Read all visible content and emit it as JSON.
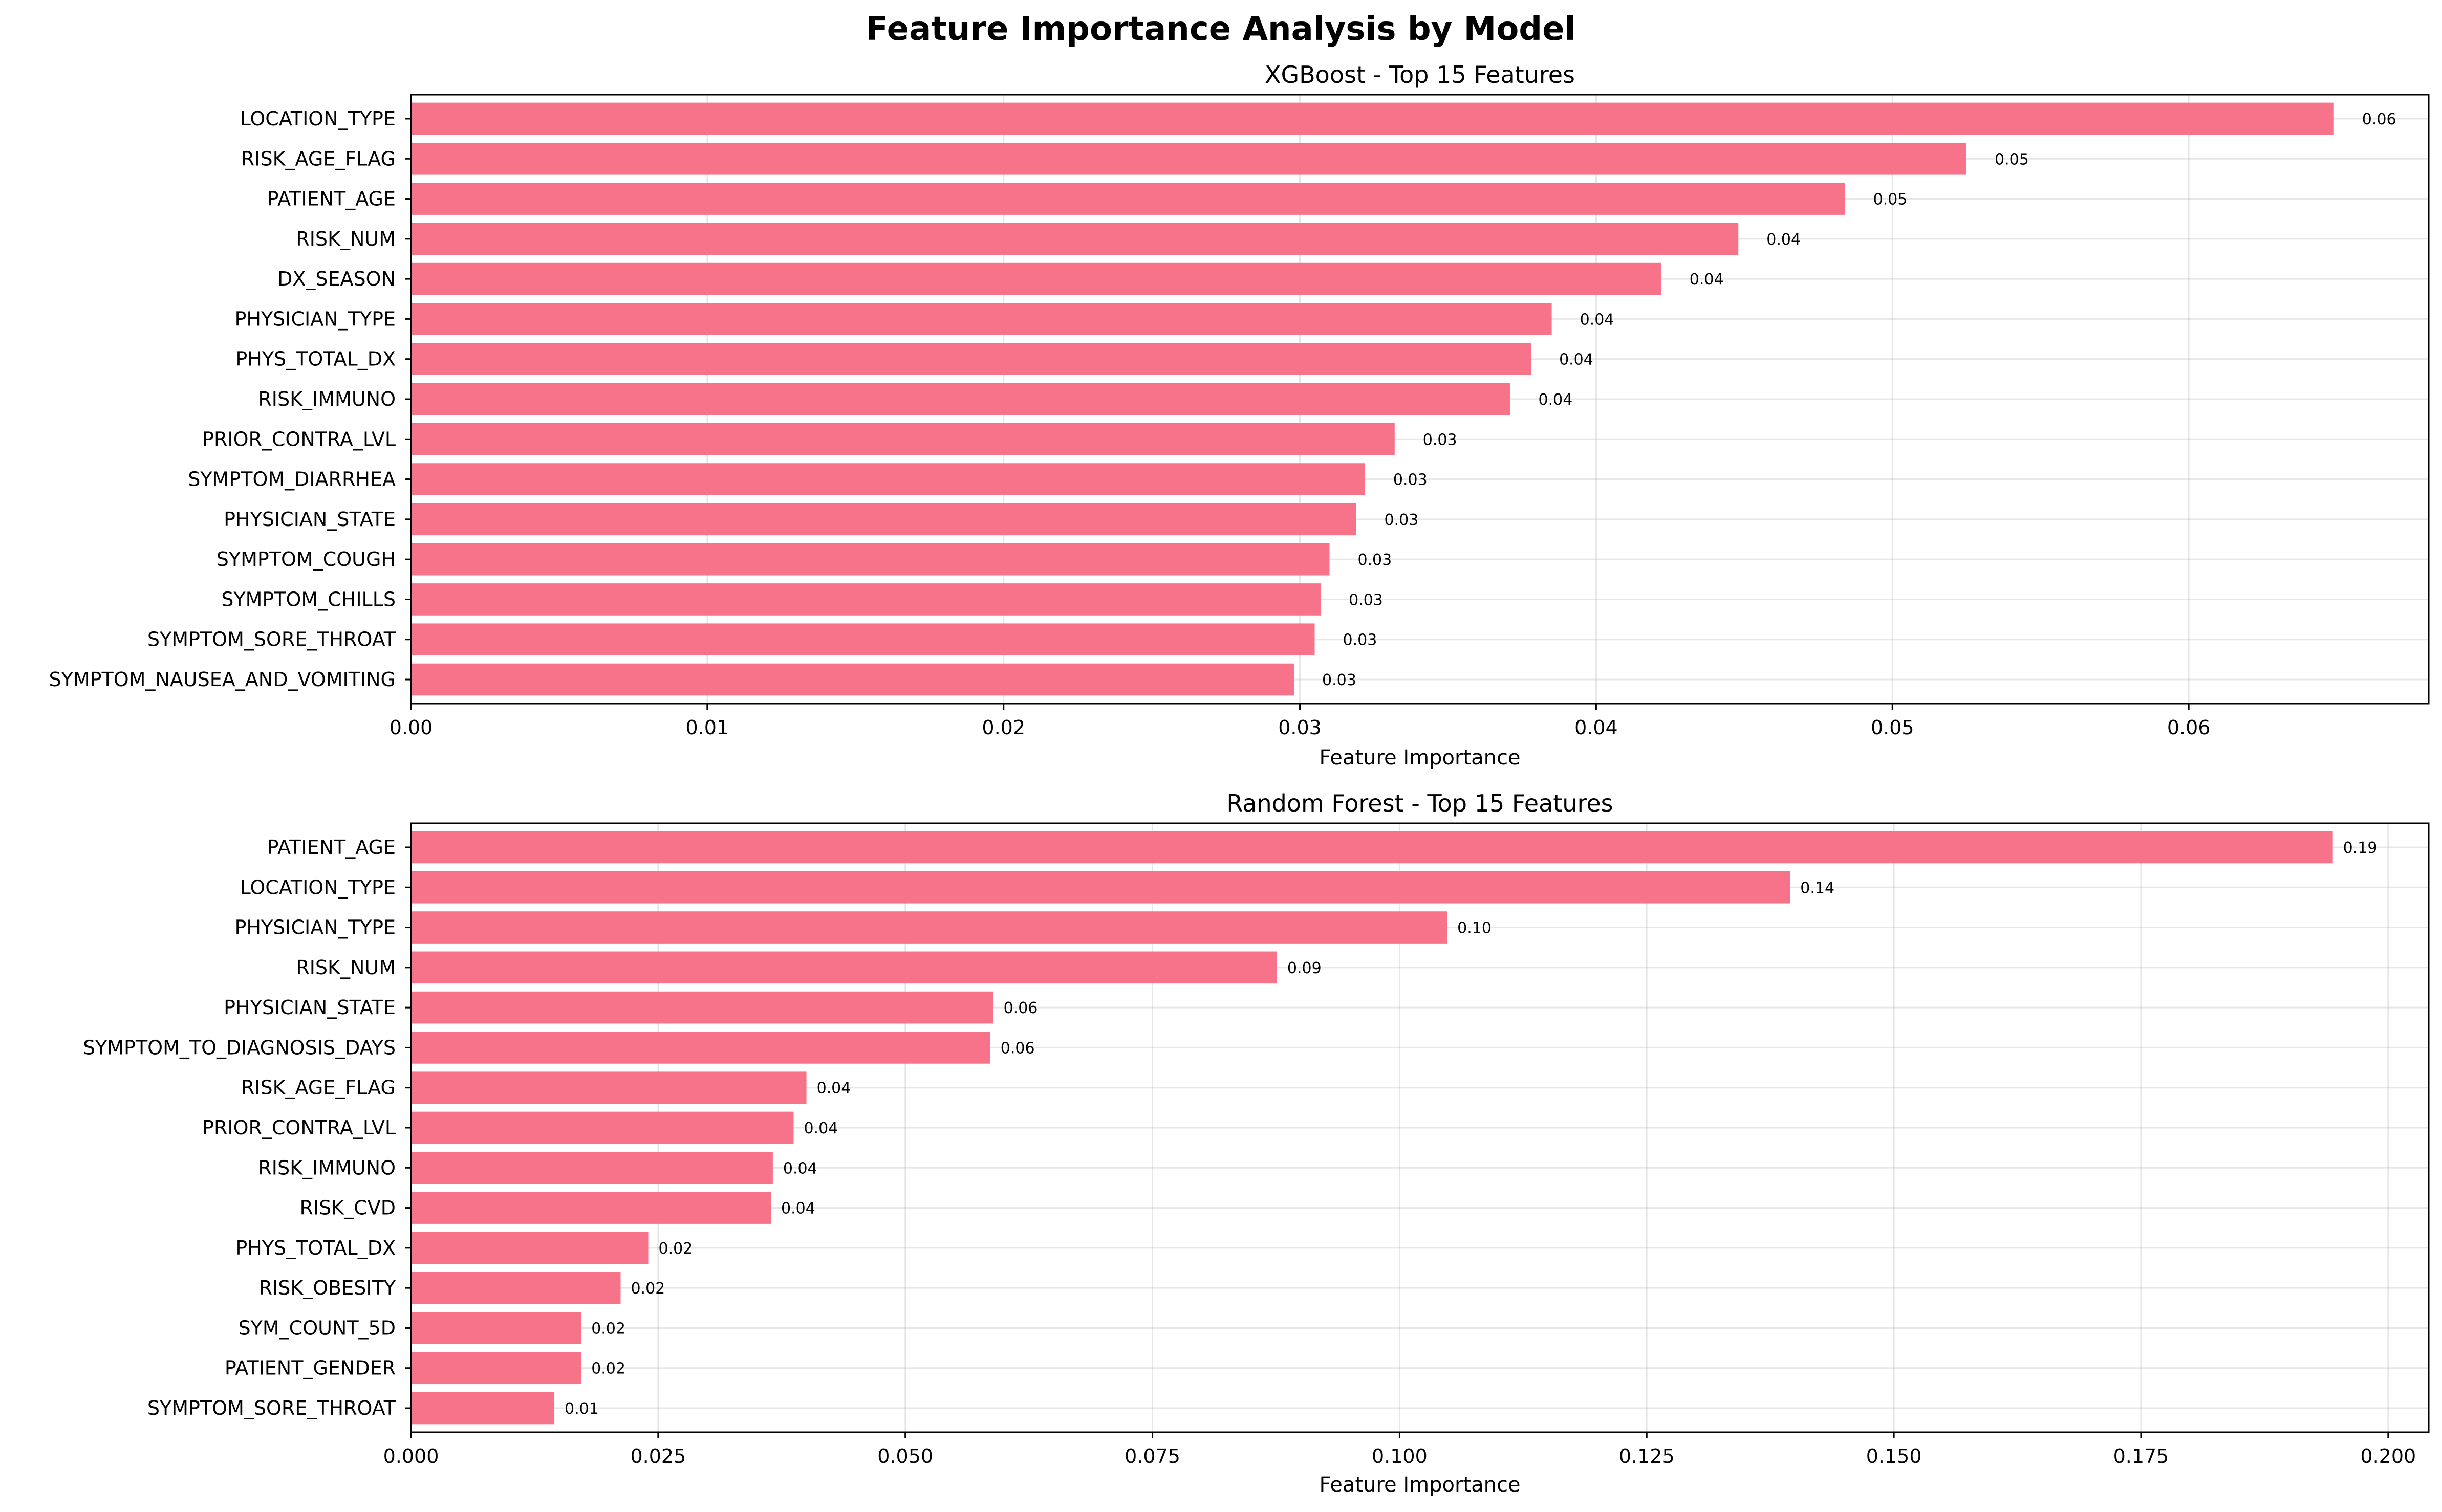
{
  "figure": {
    "title": "Feature Importance Analysis by Model"
  },
  "colors": {
    "bar": "#f7738a"
  },
  "chart_data": [
    {
      "type": "bar",
      "orientation": "horizontal",
      "title": "XGBoost - Top 15 Features",
      "xlabel": "Feature Importance",
      "ylabel": "",
      "xlim": [
        0,
        0.0681
      ],
      "xticks": [
        0.0,
        0.01,
        0.02,
        0.03,
        0.04,
        0.05,
        0.06
      ],
      "xtick_labels": [
        "0.00",
        "0.01",
        "0.02",
        "0.03",
        "0.04",
        "0.05",
        "0.06"
      ],
      "grid": true,
      "categories": [
        "LOCATION_TYPE",
        "RISK_AGE_FLAG",
        "PATIENT_AGE",
        "RISK_NUM",
        "DX_SEASON",
        "PHYSICIAN_TYPE",
        "PHYS_TOTAL_DX",
        "RISK_IMMUNO",
        "PRIOR_CONTRA_LVL",
        "SYMPTOM_DIARRHEA",
        "PHYSICIAN_STATE",
        "SYMPTOM_COUGH",
        "SYMPTOM_CHILLS",
        "SYMPTOM_SORE_THROAT",
        "SYMPTOM_NAUSEA_AND_VOMITING"
      ],
      "values": [
        0.0649,
        0.0525,
        0.0484,
        0.0448,
        0.0422,
        0.0385,
        0.0378,
        0.0371,
        0.0332,
        0.0322,
        0.0319,
        0.031,
        0.0307,
        0.0305,
        0.0298
      ],
      "value_labels": [
        "0.06",
        "0.05",
        "0.05",
        "0.04",
        "0.04",
        "0.04",
        "0.04",
        "0.04",
        "0.03",
        "0.03",
        "0.03",
        "0.03",
        "0.03",
        "0.03",
        "0.03"
      ]
    },
    {
      "type": "bar",
      "orientation": "horizontal",
      "title": "Random Forest - Top 15 Features",
      "xlabel": "Feature Importance",
      "ylabel": "",
      "xlim": [
        0,
        0.2041
      ],
      "xticks": [
        0.0,
        0.025,
        0.05,
        0.075,
        0.1,
        0.125,
        0.15,
        0.175,
        0.2
      ],
      "xtick_labels": [
        "0.000",
        "0.025",
        "0.050",
        "0.075",
        "0.100",
        "0.125",
        "0.150",
        "0.175",
        "0.200"
      ],
      "grid": true,
      "categories": [
        "PATIENT_AGE",
        "LOCATION_TYPE",
        "PHYSICIAN_TYPE",
        "RISK_NUM",
        "PHYSICIAN_STATE",
        "SYMPTOM_TO_DIAGNOSIS_DAYS",
        "RISK_AGE_FLAG",
        "PRIOR_CONTRA_LVL",
        "RISK_IMMUNO",
        "RISK_CVD",
        "PHYS_TOTAL_DX",
        "RISK_OBESITY",
        "SYM_COUNT_5D",
        "PATIENT_GENDER",
        "SYMPTOM_SORE_THROAT"
      ],
      "values": [
        0.1944,
        0.1395,
        0.1048,
        0.0876,
        0.0589,
        0.0586,
        0.04,
        0.0387,
        0.0366,
        0.0364,
        0.024,
        0.0212,
        0.0172,
        0.0172,
        0.0145
      ],
      "value_labels": [
        "0.19",
        "0.14",
        "0.10",
        "0.09",
        "0.06",
        "0.06",
        "0.04",
        "0.04",
        "0.04",
        "0.04",
        "0.02",
        "0.02",
        "0.02",
        "0.02",
        "0.01"
      ]
    }
  ]
}
